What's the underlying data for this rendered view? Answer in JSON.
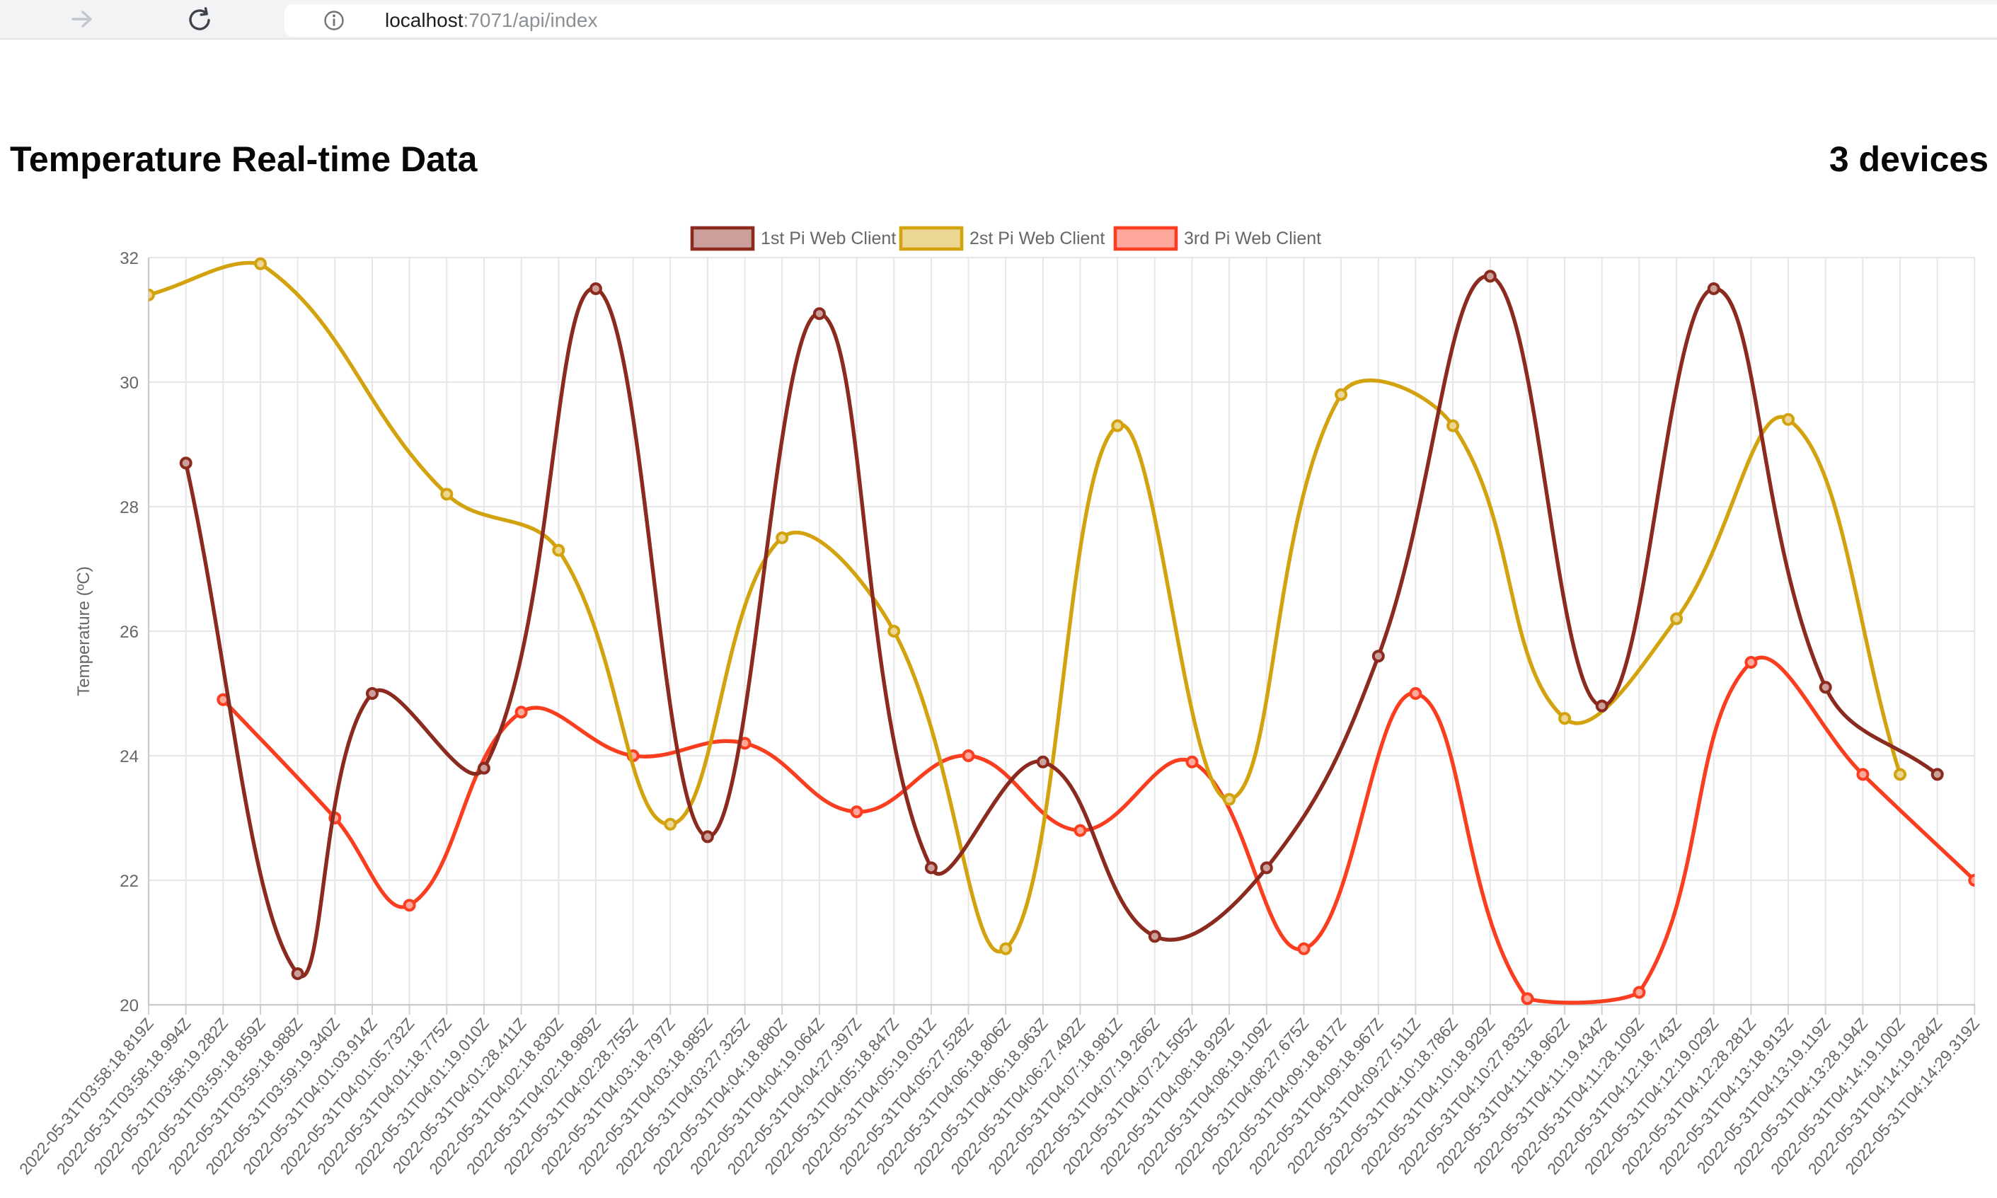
{
  "browser": {
    "url_host": "localhost",
    "url_path": ":7071/api/index",
    "icons": [
      "forward-arrow-icon",
      "reload-icon",
      "info-icon"
    ]
  },
  "header": {
    "title": "Temperature Real-time Data",
    "device_count": "3 devices"
  },
  "chart_data": {
    "type": "line",
    "title": "",
    "xlabel": "",
    "ylabel": "Temperature (ºC)",
    "ylim": [
      20,
      32
    ],
    "ytick_step": 2,
    "grid": true,
    "legend_position": "top",
    "line_tension": 0.4,
    "text_color": "#666666",
    "grid_color": "#e6e6e6",
    "axis_border_color": "#c9c9c9",
    "labels": [
      "2022-05-31T03:58:18.819Z",
      "2022-05-31T03:58:18.994Z",
      "2022-05-31T03:58:19.282Z",
      "2022-05-31T03:59:18.859Z",
      "2022-05-31T03:59:18.988Z",
      "2022-05-31T03:59:19.340Z",
      "2022-05-31T04:01:03.914Z",
      "2022-05-31T04:01:05.732Z",
      "2022-05-31T04:01:18.775Z",
      "2022-05-31T04:01:19.010Z",
      "2022-05-31T04:01:28.411Z",
      "2022-05-31T04:02:18.830Z",
      "2022-05-31T04:02:18.989Z",
      "2022-05-31T04:02:28.755Z",
      "2022-05-31T04:03:18.797Z",
      "2022-05-31T04:03:18.985Z",
      "2022-05-31T04:03:27.325Z",
      "2022-05-31T04:04:18.880Z",
      "2022-05-31T04:04:19.064Z",
      "2022-05-31T04:04:27.397Z",
      "2022-05-31T04:05:18.847Z",
      "2022-05-31T04:05:19.031Z",
      "2022-05-31T04:05:27.528Z",
      "2022-05-31T04:06:18.806Z",
      "2022-05-31T04:06:18.963Z",
      "2022-05-31T04:06:27.492Z",
      "2022-05-31T04:07:18.981Z",
      "2022-05-31T04:07:19.266Z",
      "2022-05-31T04:07:21.505Z",
      "2022-05-31T04:08:18.929Z",
      "2022-05-31T04:08:19.109Z",
      "2022-05-31T04:08:27.675Z",
      "2022-05-31T04:09:18.817Z",
      "2022-05-31T04:09:18.967Z",
      "2022-05-31T04:09:27.511Z",
      "2022-05-31T04:10:18.786Z",
      "2022-05-31T04:10:18.929Z",
      "2022-05-31T04:10:27.833Z",
      "2022-05-31T04:11:18.962Z",
      "2022-05-31T04:11:19.434Z",
      "2022-05-31T04:11:28.109Z",
      "2022-05-31T04:12:18.743Z",
      "2022-05-31T04:12:19.029Z",
      "2022-05-31T04:12:28.281Z",
      "2022-05-31T04:13:18.913Z",
      "2022-05-31T04:13:19.119Z",
      "2022-05-31T04:13:28.194Z",
      "2022-05-31T04:14:19.100Z",
      "2022-05-31T04:14:19.284Z",
      "2022-05-31T04:14:29.319Z"
    ],
    "series": [
      {
        "name": "1st Pi Web Client",
        "color": "#8B2A1E",
        "points": [
          [
            1,
            28.7
          ],
          [
            4,
            20.5
          ],
          [
            6,
            25.0
          ],
          [
            9,
            23.8
          ],
          [
            12,
            31.5
          ],
          [
            15,
            22.7
          ],
          [
            18,
            31.1
          ],
          [
            21,
            22.2
          ],
          [
            24,
            23.9
          ],
          [
            27,
            21.1
          ],
          [
            30,
            22.2
          ],
          [
            33,
            25.6
          ],
          [
            36,
            31.7
          ],
          [
            39,
            24.8
          ],
          [
            42,
            31.5
          ],
          [
            45,
            25.1
          ],
          [
            48,
            23.7
          ]
        ]
      },
      {
        "name": "2st Pi Web Client",
        "color": "#D2A30F",
        "points": [
          [
            0,
            31.4
          ],
          [
            3,
            31.9
          ],
          [
            8,
            28.2
          ],
          [
            11,
            27.3
          ],
          [
            14,
            22.9
          ],
          [
            17,
            27.5
          ],
          [
            20,
            26.0
          ],
          [
            23,
            20.9
          ],
          [
            26,
            29.3
          ],
          [
            29,
            23.3
          ],
          [
            32,
            29.8
          ],
          [
            35,
            29.3
          ],
          [
            38,
            24.6
          ],
          [
            41,
            26.2
          ],
          [
            44,
            29.4
          ],
          [
            47,
            23.7
          ]
        ]
      },
      {
        "name": "3rd Pi Web Client",
        "color": "#FA3E1F",
        "points": [
          [
            2,
            24.9
          ],
          [
            5,
            23.0
          ],
          [
            7,
            21.6
          ],
          [
            10,
            24.7
          ],
          [
            13,
            24.0
          ],
          [
            16,
            24.2
          ],
          [
            19,
            23.1
          ],
          [
            22,
            24.0
          ],
          [
            25,
            22.8
          ],
          [
            28,
            23.9
          ],
          [
            31,
            20.9
          ],
          [
            34,
            25.0
          ],
          [
            37,
            20.1
          ],
          [
            40,
            20.2
          ],
          [
            43,
            25.5
          ],
          [
            46,
            23.7
          ],
          [
            49,
            22.0
          ]
        ]
      }
    ]
  }
}
